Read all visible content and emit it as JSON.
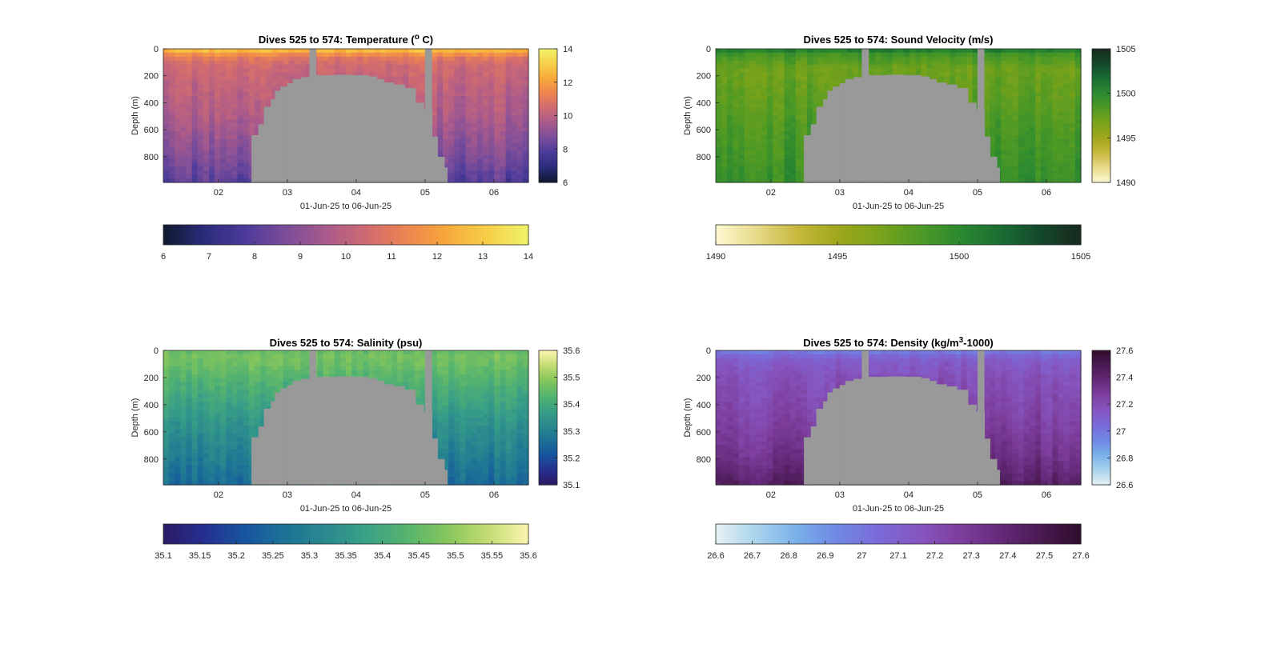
{
  "colors": {
    "bathymetry_mask": "#999999",
    "axis": "#262626",
    "background": "#ffffff"
  },
  "chart_data": [
    {
      "type": "heatmap",
      "title": "Dives 525 to 574: Temperature (",
      "title_sup": "o",
      "title_suffix": " C)",
      "xlabel": "01-Jun-25 to 06-Jun-25",
      "ylabel": "Depth (m)",
      "x_tick_labels": [
        "02",
        "03",
        "04",
        "05",
        "06"
      ],
      "x_ticks": [
        2,
        3,
        4,
        5,
        6
      ],
      "xlim": [
        1.2,
        6.5
      ],
      "y_ticks": [
        0,
        200,
        400,
        600,
        800
      ],
      "ylim": [
        0,
        990
      ],
      "y_reversed": true,
      "colormap": [
        "#0f1a2e",
        "#2a2c7a",
        "#4b3a9a",
        "#7a4d9a",
        "#a85a8c",
        "#cf6a72",
        "#ee8450",
        "#f7a93b",
        "#f6d048",
        "#eff36a"
      ],
      "clim": [
        6,
        14
      ],
      "colorbar_right_ticks": [
        6,
        8,
        10,
        12,
        14
      ],
      "colorbar_bottom_ticks": [
        6,
        7,
        8,
        9,
        10,
        11,
        12,
        13,
        14
      ],
      "profile": {
        "depth": [
          0,
          30,
          60,
          120,
          250,
          500,
          800,
          990
        ],
        "value": [
          13.0,
          12.0,
          11.0,
          10.4,
          10.1,
          9.6,
          8.7,
          7.9
        ]
      }
    },
    {
      "type": "heatmap",
      "title": "Dives 525 to 574: Sound Velocity (m/s)",
      "xlabel": "01-Jun-25 to 06-Jun-25",
      "ylabel": "Depth (m)",
      "x_tick_labels": [
        "02",
        "03",
        "04",
        "05",
        "06"
      ],
      "x_ticks": [
        2,
        3,
        4,
        5,
        6
      ],
      "xlim": [
        1.2,
        6.5
      ],
      "y_ticks": [
        0,
        200,
        400,
        600,
        800
      ],
      "ylim": [
        0,
        990
      ],
      "y_reversed": true,
      "colormap": [
        "#fdf8d2",
        "#e7da8a",
        "#c6b83c",
        "#a0a81c",
        "#7ba31a",
        "#4f9a24",
        "#2c8a30",
        "#1a6e32",
        "#14482c",
        "#182a1e"
      ],
      "clim": [
        1490,
        1505
      ],
      "colorbar_right_ticks": [
        1490,
        1495,
        1500,
        1505
      ],
      "colorbar_bottom_ticks": [
        1490,
        1495,
        1500,
        1505
      ],
      "profile": {
        "depth": [
          0,
          15,
          40,
          150,
          350,
          600,
          800,
          990
        ],
        "value": [
          1502.0,
          1500.5,
          1499.0,
          1497.2,
          1497.8,
          1498.6,
          1499.1,
          1499.6
        ]
      }
    },
    {
      "type": "heatmap",
      "title": "Dives 525 to 574: Salinity (psu)",
      "xlabel": "01-Jun-25 to 06-Jun-25",
      "ylabel": "Depth (m)",
      "x_tick_labels": [
        "02",
        "03",
        "04",
        "05",
        "06"
      ],
      "x_ticks": [
        2,
        3,
        4,
        5,
        6
      ],
      "xlim": [
        1.2,
        6.5
      ],
      "y_ticks": [
        0,
        200,
        400,
        600,
        800
      ],
      "ylim": [
        0,
        990
      ],
      "y_reversed": true,
      "colormap": [
        "#2b1a63",
        "#262f8f",
        "#17559e",
        "#1c7296",
        "#2a8a8e",
        "#3aa086",
        "#56b46e",
        "#86c65c",
        "#c3dc72",
        "#fbf5b0"
      ],
      "clim": [
        35.1,
        35.6
      ],
      "colorbar_right_ticks": [
        35.1,
        35.2,
        35.3,
        35.4,
        35.5,
        35.6
      ],
      "colorbar_bottom_ticks": [
        35.1,
        35.15,
        35.2,
        35.25,
        35.3,
        35.35,
        35.4,
        35.45,
        35.5,
        35.55,
        35.6
      ],
      "profile": {
        "depth": [
          0,
          40,
          100,
          200,
          400,
          600,
          800,
          990
        ],
        "value": [
          35.45,
          35.47,
          35.46,
          35.43,
          35.38,
          35.33,
          35.29,
          35.25
        ]
      }
    },
    {
      "type": "heatmap",
      "title": "Dives 525 to 574: Density (kg/m",
      "title_sup": "3",
      "title_suffix": "-1000)",
      "xlabel": "01-Jun-25 to 06-Jun-25",
      "ylabel": "Depth (m)",
      "x_tick_labels": [
        "02",
        "03",
        "04",
        "05",
        "06"
      ],
      "x_ticks": [
        2,
        3,
        4,
        5,
        6
      ],
      "xlim": [
        1.2,
        6.5
      ],
      "y_ticks": [
        0,
        200,
        400,
        600,
        800
      ],
      "ylim": [
        0,
        990
      ],
      "y_reversed": true,
      "colormap": [
        "#e6f2f2",
        "#a9d3ec",
        "#7ab0ea",
        "#6f87e3",
        "#7a6bd8",
        "#8656c0",
        "#7e3f9e",
        "#652a7a",
        "#4a1a52",
        "#300c2c"
      ],
      "clim": [
        26.6,
        27.6
      ],
      "colorbar_right_ticks": [
        26.6,
        26.8,
        27,
        27.2,
        27.4,
        27.6
      ],
      "colorbar_bottom_ticks": [
        26.6,
        26.7,
        26.8,
        26.9,
        27,
        27.1,
        27.2,
        27.3,
        27.4,
        27.5,
        27.6
      ],
      "profile": {
        "depth": [
          0,
          30,
          80,
          200,
          400,
          600,
          800,
          990
        ],
        "value": [
          26.95,
          27.05,
          27.12,
          27.18,
          27.22,
          27.27,
          27.34,
          27.45
        ]
      }
    }
  ]
}
